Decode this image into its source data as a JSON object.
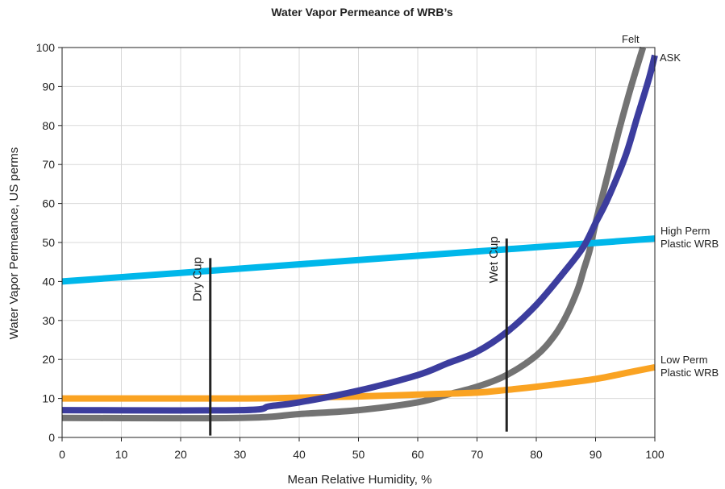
{
  "chart_data": {
    "type": "line",
    "title": "Water Vapor Permeance of WRB’s",
    "xlabel": "Mean Relative Humidity, %",
    "ylabel": "Water Vapor Permeance, US perms",
    "xlim": [
      0,
      100
    ],
    "ylim": [
      0,
      100
    ],
    "x_ticks": [
      0,
      10,
      20,
      30,
      40,
      50,
      60,
      70,
      80,
      90,
      100
    ],
    "y_ticks": [
      0,
      10,
      20,
      30,
      40,
      50,
      60,
      70,
      80,
      90,
      100
    ],
    "grid": true,
    "legend": "none",
    "series": [
      {
        "name": "Felt",
        "label_lines": [
          "Felt"
        ],
        "color": "#737373",
        "x": [
          0,
          30,
          40,
          50,
          60,
          65,
          70,
          75,
          80,
          83,
          85,
          87,
          88,
          89,
          90,
          92,
          94,
          96,
          98
        ],
        "y": [
          5,
          5,
          6,
          7,
          9,
          11,
          13,
          16,
          21,
          26,
          31,
          38,
          43,
          48,
          55,
          67,
          79,
          90,
          100
        ]
      },
      {
        "name": "ASK",
        "label_lines": [
          "ASK"
        ],
        "color": "#3c3d9e",
        "x": [
          0,
          30,
          35,
          40,
          50,
          60,
          65,
          70,
          75,
          80,
          85,
          88,
          90,
          92,
          95,
          97,
          99,
          100
        ],
        "y": [
          7,
          7,
          8,
          9,
          12,
          16,
          19,
          22,
          27,
          34,
          43,
          49,
          55,
          61,
          72,
          82,
          92,
          98
        ]
      },
      {
        "name": "High Perm Plastic WRB",
        "label_lines": [
          "High Perm",
          "Plastic WRB"
        ],
        "color": "#00b7ea",
        "x": [
          0,
          100
        ],
        "y": [
          40,
          51
        ]
      },
      {
        "name": "Low Perm Plastic WRB",
        "label_lines": [
          "Low Perm",
          "Plastic WRB"
        ],
        "color": "#faa322",
        "x": [
          0,
          30,
          40,
          50,
          60,
          70,
          75,
          80,
          90,
          95,
          100
        ],
        "y": [
          10,
          10,
          10.2,
          10.5,
          11,
          11.5,
          12.2,
          13,
          15,
          16.5,
          18
        ]
      }
    ],
    "markers": [
      {
        "label": "Dry Cup",
        "x": 25,
        "y_range": [
          0.5,
          46
        ]
      },
      {
        "label": "Wet Cup",
        "x": 75,
        "y_range": [
          1.5,
          51
        ]
      }
    ],
    "colors": {
      "grid": "#d9d9d9",
      "axis": "#222222",
      "marker_line": "#222222"
    }
  }
}
